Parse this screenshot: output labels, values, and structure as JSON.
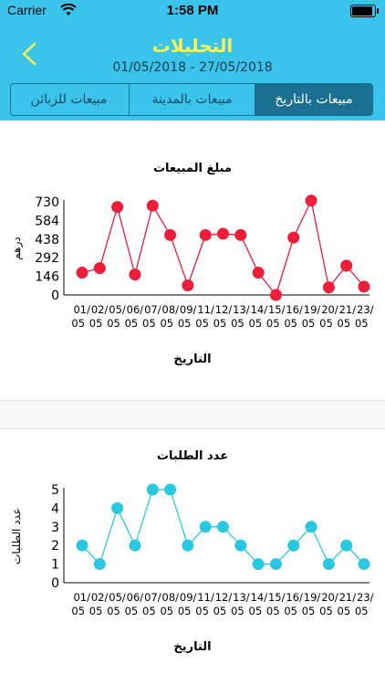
{
  "status": {
    "carrier": "Carrier",
    "time": "1:58 PM"
  },
  "header": {
    "title": "التحليلات",
    "date_range": "01/05/2018 - 27/05/2018",
    "title_color": "#fff44f",
    "background": "#3ac4ec"
  },
  "tabs": [
    {
      "label": "مبيعات بالتاريخ",
      "active": true
    },
    {
      "label": "مبيعات بالمدينة",
      "active": false
    },
    {
      "label": "مبيعات للزبائن",
      "active": false
    }
  ],
  "chart_data": [
    {
      "type": "line",
      "title": "مبلغ المبيعات",
      "xlabel": "التاريخ",
      "ylabel": "درهم",
      "color": "#ee1d3a",
      "categories": [
        "01/05",
        "02/05",
        "05/05",
        "06/05",
        "07/05",
        "08/05",
        "09/05",
        "11/05",
        "12/05",
        "13/05",
        "14/05",
        "15/05",
        "16/05",
        "19/05",
        "20/05",
        "21/05",
        "23/05"
      ],
      "x_tick_top": [
        "01/",
        "02/",
        "05/",
        "06/",
        "07/",
        "08/",
        "09/",
        "11/",
        "12/",
        "13/",
        "14/",
        "15/",
        "16/",
        "19/",
        "20/",
        "21/",
        "23/"
      ],
      "x_tick_bottom": [
        "05",
        "05",
        "05",
        "05",
        "05",
        "05",
        "05",
        "05",
        "05",
        "05",
        "05",
        "05",
        "05",
        "05",
        "05",
        "05",
        "05"
      ],
      "values": [
        175,
        210,
        690,
        160,
        700,
        470,
        75,
        470,
        480,
        470,
        175,
        0,
        450,
        740,
        60,
        230,
        65
      ],
      "yticks": [
        0,
        146,
        292,
        438,
        584,
        730
      ],
      "ylim": [
        0,
        730
      ]
    },
    {
      "type": "line",
      "title": "عدد الطلبات",
      "xlabel": "التاريخ",
      "ylabel": "عدد الطلبات",
      "color": "#2ac8e0",
      "categories": [
        "01/05",
        "02/05",
        "05/05",
        "06/05",
        "07/05",
        "08/05",
        "09/05",
        "11/05",
        "12/05",
        "13/05",
        "14/05",
        "15/05",
        "16/05",
        "19/05",
        "20/05",
        "21/05",
        "23/05"
      ],
      "x_tick_top": [
        "01/",
        "02/",
        "05/",
        "06/",
        "07/",
        "08/",
        "09/",
        "11/",
        "12/",
        "13/",
        "14/",
        "15/",
        "16/",
        "19/",
        "20/",
        "21/",
        "23/"
      ],
      "x_tick_bottom": [
        "05",
        "05",
        "05",
        "05",
        "05",
        "05",
        "05",
        "05",
        "05",
        "05",
        "05",
        "05",
        "05",
        "05",
        "05",
        "05",
        "05"
      ],
      "values": [
        2,
        1,
        4,
        2,
        5,
        5,
        2,
        3,
        3,
        2,
        1,
        1,
        2,
        3,
        1,
        2,
        1
      ],
      "yticks": [
        0,
        1,
        2,
        3,
        4,
        5
      ],
      "ylim": [
        0,
        5
      ]
    }
  ]
}
